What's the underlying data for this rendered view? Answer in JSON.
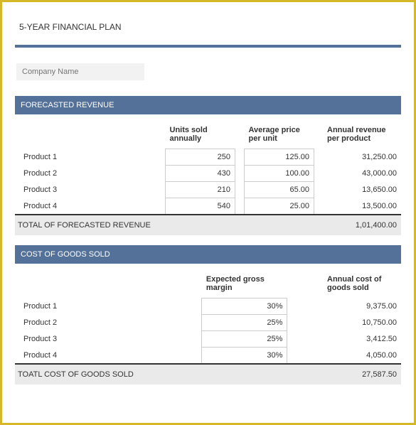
{
  "document": {
    "title": "5-YEAR FINANCIAL PLAN",
    "company_placeholder": "Company Name"
  },
  "colors": {
    "outer_border": "#d4b829",
    "section_header_bg": "#547199",
    "section_header_text": "#ffffff",
    "total_row_bg": "#eaeaea",
    "input_bg": "#f2f2f2",
    "cell_border": "#cccccc",
    "divider": "#547199",
    "total_border": "#333333"
  },
  "revenue": {
    "header": "FORECASTED REVENUE",
    "columns": {
      "units": "Units sold annually",
      "price": "Average price per unit",
      "annual": "Annual revenue per product"
    },
    "rows": [
      {
        "label": "Product 1",
        "units": "250",
        "price": "125.00",
        "annual": "31,250.00"
      },
      {
        "label": "Product 2",
        "units": "430",
        "price": "100.00",
        "annual": "43,000.00"
      },
      {
        "label": "Product 3",
        "units": "210",
        "price": "65.00",
        "annual": "13,650.00"
      },
      {
        "label": "Product 4",
        "units": "540",
        "price": "25.00",
        "annual": "13,500.00"
      }
    ],
    "total_label": "TOTAL OF FORECASTED REVENUE",
    "total_value": "1,01,400.00"
  },
  "cogs": {
    "header": "COST OF GOODS SOLD",
    "columns": {
      "margin": "Expected gross margin",
      "annual": "Annual cost of goods sold"
    },
    "rows": [
      {
        "label": "Product 1",
        "margin": "30%",
        "annual": "9,375.00"
      },
      {
        "label": "Product 2",
        "margin": "25%",
        "annual": "10,750.00"
      },
      {
        "label": "Product 3",
        "margin": "25%",
        "annual": "3,412.50"
      },
      {
        "label": "Product 4",
        "margin": "30%",
        "annual": "4,050.00"
      }
    ],
    "total_label": "TOATL COST OF GOODS SOLD",
    "total_value": "27,587.50"
  }
}
